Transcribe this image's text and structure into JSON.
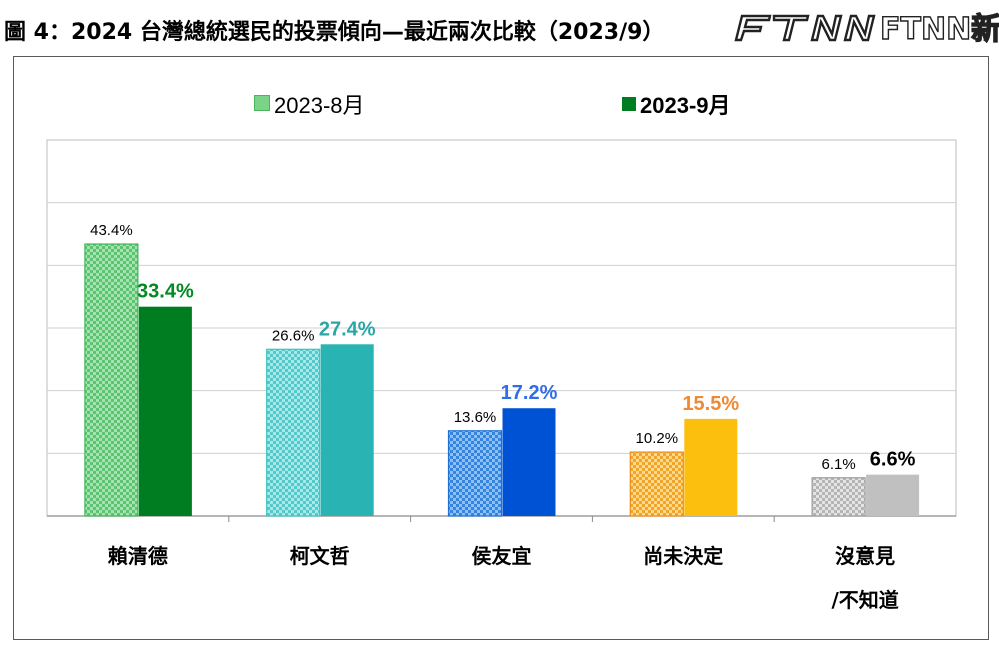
{
  "title": "圖 4：2024 台灣總統選民的投票傾向—最近兩次比較（2023/9）",
  "logo_text": "FTNN新聞網",
  "colors": {
    "green_light": "#7bd389",
    "green_dark": "#007d21",
    "teal_light": "#7fd8d8",
    "teal_dark": "#2ab3b3",
    "blue_light": "#5a9ee8",
    "blue_dark": "#0052d4",
    "orange_light": "#f6b73c",
    "orange_dark": "#fdbf0d",
    "gray_light": "#cfcfcf",
    "gray_dark": "#c0c0c0",
    "label_green": "#008a21",
    "label_teal": "#2aa6a6",
    "label_blue": "#2e6ee6",
    "label_orange": "#ee8a33",
    "label_black": "#000000"
  },
  "chart_data": {
    "type": "bar",
    "title": "圖 4：2024 台灣總統選民的投票傾向—最近兩次比較（2023/9）",
    "categories": [
      "賴清德",
      "柯文哲",
      "侯友宜",
      "尚未決定",
      "沒意見/不知道"
    ],
    "category_lines": [
      [
        "賴清德"
      ],
      [
        "柯文哲"
      ],
      [
        "侯友宜"
      ],
      [
        "尚未決定"
      ],
      [
        "沒意見",
        "/不知道"
      ]
    ],
    "series": [
      {
        "name": "2023-8月",
        "values": [
          43.4,
          26.6,
          13.6,
          10.2,
          6.1
        ],
        "labels": [
          "43.4%",
          "26.6%",
          "13.6%",
          "10.2%",
          "6.1%"
        ]
      },
      {
        "name": "2023-9月",
        "values": [
          33.4,
          27.4,
          17.2,
          15.5,
          6.6
        ],
        "labels": [
          "33.4%",
          "27.4%",
          "17.2%",
          "15.5%",
          "6.6%"
        ]
      }
    ],
    "ylim": [
      0,
      60
    ],
    "grid": true,
    "legend_position": "top-center",
    "xlabel": "",
    "ylabel": ""
  }
}
